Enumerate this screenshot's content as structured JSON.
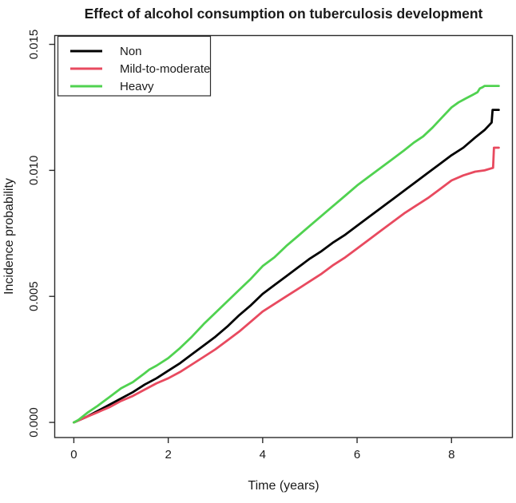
{
  "chart_data": {
    "type": "line",
    "title": "Effect of alcohol consumption on tuberculosis development",
    "xlabel": "Time (years)",
    "ylabel": "Incidence probability",
    "xlim": [
      -0.405,
      9.29
    ],
    "ylim": [
      -0.0006,
      0.01535
    ],
    "x_ticks": [
      0,
      2,
      4,
      6,
      8
    ],
    "x_tick_labels": [
      "0",
      "2",
      "4",
      "6",
      "8"
    ],
    "y_ticks": [
      0.0,
      0.005,
      0.01,
      0.015
    ],
    "y_tick_labels": [
      "0.000",
      "0.005",
      "0.010",
      "0.015"
    ],
    "grid": false,
    "legend_position": "top-left",
    "axis_color": "#2b2b2b",
    "series": [
      {
        "name": "Non",
        "color": "#000000",
        "points": [
          [
            0,
            0
          ],
          [
            0.25,
            0.0002
          ],
          [
            0.5,
            0.00045
          ],
          [
            0.75,
            0.0007
          ],
          [
            1,
            0.00095
          ],
          [
            1.25,
            0.0012
          ],
          [
            1.5,
            0.0015
          ],
          [
            1.75,
            0.00175
          ],
          [
            2,
            0.00205
          ],
          [
            2.25,
            0.00235
          ],
          [
            2.5,
            0.0027
          ],
          [
            2.75,
            0.00305
          ],
          [
            3,
            0.0034
          ],
          [
            3.25,
            0.0038
          ],
          [
            3.5,
            0.00425
          ],
          [
            3.75,
            0.00465
          ],
          [
            4,
            0.0051
          ],
          [
            4.25,
            0.00545
          ],
          [
            4.5,
            0.0058
          ],
          [
            4.75,
            0.00615
          ],
          [
            5,
            0.0065
          ],
          [
            5.25,
            0.0068
          ],
          [
            5.5,
            0.00715
          ],
          [
            5.75,
            0.00745
          ],
          [
            6,
            0.0078
          ],
          [
            6.25,
            0.00815
          ],
          [
            6.5,
            0.0085
          ],
          [
            6.75,
            0.00885
          ],
          [
            7,
            0.0092
          ],
          [
            7.25,
            0.00955
          ],
          [
            7.5,
            0.0099
          ],
          [
            7.75,
            0.01025
          ],
          [
            8,
            0.0106
          ],
          [
            8.25,
            0.0109
          ],
          [
            8.5,
            0.0113
          ],
          [
            8.7,
            0.0116
          ],
          [
            8.85,
            0.0119
          ],
          [
            8.87,
            0.0124
          ],
          [
            9,
            0.0124
          ]
        ]
      },
      {
        "name": "Mild-to-moderate",
        "color": "#e84a5f",
        "points": [
          [
            0,
            0
          ],
          [
            0.25,
            0.0002
          ],
          [
            0.5,
            0.0004
          ],
          [
            0.75,
            0.0006
          ],
          [
            1,
            0.00085
          ],
          [
            1.25,
            0.00105
          ],
          [
            1.5,
            0.0013
          ],
          [
            1.75,
            0.00155
          ],
          [
            2,
            0.00175
          ],
          [
            2.25,
            0.002
          ],
          [
            2.5,
            0.0023
          ],
          [
            2.75,
            0.0026
          ],
          [
            3,
            0.0029
          ],
          [
            3.25,
            0.00325
          ],
          [
            3.5,
            0.0036
          ],
          [
            3.75,
            0.004
          ],
          [
            4,
            0.0044
          ],
          [
            4.25,
            0.0047
          ],
          [
            4.5,
            0.005
          ],
          [
            4.75,
            0.0053
          ],
          [
            5,
            0.0056
          ],
          [
            5.25,
            0.0059
          ],
          [
            5.5,
            0.00625
          ],
          [
            5.75,
            0.00655
          ],
          [
            6,
            0.0069
          ],
          [
            6.25,
            0.00725
          ],
          [
            6.5,
            0.0076
          ],
          [
            6.75,
            0.00795
          ],
          [
            7,
            0.0083
          ],
          [
            7.25,
            0.0086
          ],
          [
            7.5,
            0.0089
          ],
          [
            7.75,
            0.00925
          ],
          [
            8,
            0.0096
          ],
          [
            8.25,
            0.0098
          ],
          [
            8.5,
            0.00995
          ],
          [
            8.7,
            0.01
          ],
          [
            8.88,
            0.0101
          ],
          [
            8.9,
            0.0109
          ],
          [
            9,
            0.0109
          ]
        ]
      },
      {
        "name": "Heavy",
        "color": "#50d250",
        "points": [
          [
            0,
            0
          ],
          [
            0.1,
            0.0001
          ],
          [
            0.3,
            0.0004
          ],
          [
            0.5,
            0.00065
          ],
          [
            0.75,
            0.001
          ],
          [
            1,
            0.00135
          ],
          [
            1.25,
            0.0016
          ],
          [
            1.5,
            0.00195
          ],
          [
            1.6,
            0.0021
          ],
          [
            1.75,
            0.00225
          ],
          [
            2,
            0.00255
          ],
          [
            2.25,
            0.00295
          ],
          [
            2.5,
            0.0034
          ],
          [
            2.75,
            0.0039
          ],
          [
            3,
            0.00435
          ],
          [
            3.25,
            0.0048
          ],
          [
            3.5,
            0.00525
          ],
          [
            3.75,
            0.0057
          ],
          [
            4,
            0.0062
          ],
          [
            4.25,
            0.00655
          ],
          [
            4.5,
            0.007
          ],
          [
            4.75,
            0.0074
          ],
          [
            5,
            0.0078
          ],
          [
            5.25,
            0.0082
          ],
          [
            5.5,
            0.0086
          ],
          [
            5.75,
            0.009
          ],
          [
            6,
            0.0094
          ],
          [
            6.25,
            0.00975
          ],
          [
            6.5,
            0.0101
          ],
          [
            6.75,
            0.01045
          ],
          [
            7,
            0.0108
          ],
          [
            7.2,
            0.0111
          ],
          [
            7.4,
            0.01135
          ],
          [
            7.6,
            0.0117
          ],
          [
            7.8,
            0.0121
          ],
          [
            8,
            0.0125
          ],
          [
            8.15,
            0.0127
          ],
          [
            8.3,
            0.01285
          ],
          [
            8.45,
            0.013
          ],
          [
            8.55,
            0.0131
          ],
          [
            8.6,
            0.01325
          ],
          [
            8.66,
            0.0133
          ],
          [
            8.7,
            0.01335
          ],
          [
            9,
            0.01335
          ]
        ]
      }
    ],
    "legend_order": [
      "Non",
      "Mild-to-moderate",
      "Heavy"
    ]
  }
}
